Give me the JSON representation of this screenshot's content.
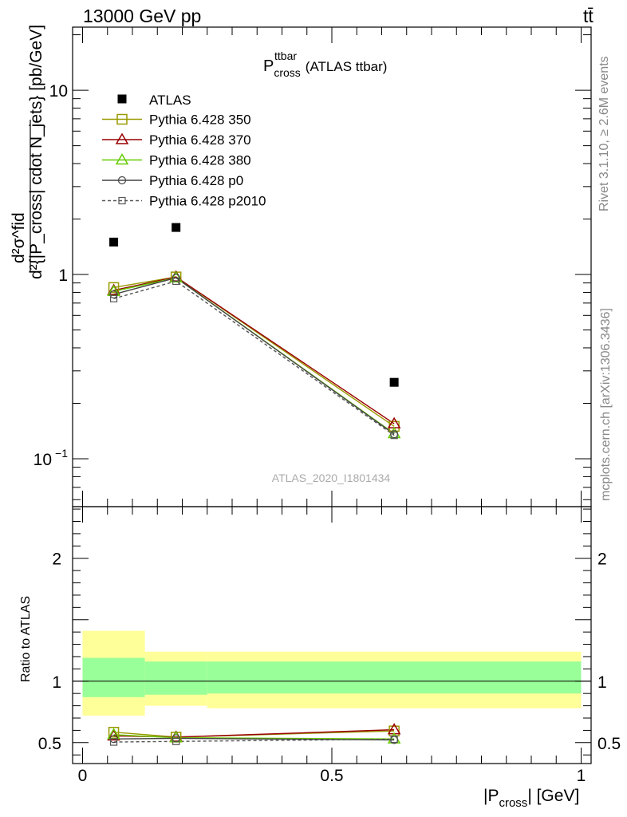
{
  "header": {
    "left": "13000 GeV pp",
    "right": "tt̄"
  },
  "side_text": {
    "rivet": "Rivet 3.1.10, ≥ 2.6M events",
    "mcplots": "mcplots.cern.ch [arXiv:1306.3436]"
  },
  "chart_data": {
    "type": "line",
    "title_main": "P",
    "title_sup": "ttbar",
    "title_sub": "cross",
    "title_suffix": "(ATLAS ttbar)",
    "watermark": "ATLAS_2020_I1801434",
    "main_ylabel": {
      "line1": "d²σ^fid",
      "line2": "d²{|P_cross| cdot N_jets} [pb/GeV]"
    },
    "ratio_ylabel": "Ratio to ATLAS",
    "xlabel": {
      "pre": "|P",
      "sub": "cross",
      "post": "| [GeV]"
    },
    "xlim": [
      -0.02,
      1.02
    ],
    "main_ylim": [
      0.055,
      22
    ],
    "main_yscale": "log",
    "main_yticks": [
      {
        "value": 10,
        "base": "10",
        "exp": ""
      },
      {
        "value": 1,
        "base": "1",
        "exp": ""
      },
      {
        "value": 0.1,
        "base": "10",
        "exp": "−1"
      }
    ],
    "ratio_ylim": [
      0.33,
      2.42
    ],
    "ratio_yticks": [
      {
        "value": 2,
        "label": "2"
      },
      {
        "value": 1,
        "label": "1"
      },
      {
        "value": 0.5,
        "label": "0.5"
      }
    ],
    "xticks": [
      {
        "value": 0,
        "label": "0"
      },
      {
        "value": 0.5,
        "label": "0.5"
      },
      {
        "value": 1,
        "label": "1"
      }
    ],
    "bands": [
      {
        "x0": 0.0,
        "x1": 0.125,
        "inner": [
          0.87,
          1.19
        ],
        "outer": [
          0.72,
          1.41
        ]
      },
      {
        "x0": 0.125,
        "x1": 0.25,
        "inner": [
          0.89,
          1.16
        ],
        "outer": [
          0.8,
          1.24
        ]
      },
      {
        "x0": 0.25,
        "x1": 1.0,
        "inner": [
          0.9,
          1.16
        ],
        "outer": [
          0.78,
          1.24
        ]
      }
    ],
    "data": {
      "name": "ATLAS",
      "x": [
        0.0625,
        0.1875,
        0.625
      ],
      "y": [
        1.5,
        1.8,
        0.26
      ]
    },
    "series": [
      {
        "name": "Pythia 6.428 350",
        "color": "#999900",
        "marker": "square-open",
        "dash": "none",
        "x": [
          0.0625,
          0.1875,
          0.625
        ],
        "y": [
          0.85,
          0.97,
          0.15
        ],
        "ratio": [
          0.585,
          0.545,
          0.595
        ]
      },
      {
        "name": "Pythia 6.428 370",
        "color": "#990000",
        "marker": "triangle-open",
        "dash": "none",
        "x": [
          0.0625,
          0.1875,
          0.625
        ],
        "y": [
          0.82,
          0.97,
          0.155
        ],
        "ratio": [
          0.555,
          0.545,
          0.605
        ]
      },
      {
        "name": "Pythia 6.428 380",
        "color": "#66cc00",
        "marker": "triangle-open",
        "dash": "none",
        "x": [
          0.0625,
          0.1875,
          0.625
        ],
        "y": [
          0.81,
          0.96,
          0.137
        ],
        "ratio": [
          0.565,
          0.54,
          0.53
        ]
      },
      {
        "name": "Pythia 6.428 p0",
        "color": "#444444",
        "marker": "circle-open",
        "dash": "none",
        "x": [
          0.0625,
          0.1875,
          0.625
        ],
        "y": [
          0.78,
          0.96,
          0.136
        ],
        "ratio": [
          0.53,
          0.535,
          0.522
        ]
      },
      {
        "name": "Pythia 6.428 p2010",
        "color": "#555555",
        "marker": "square-open-small",
        "dash": "4,3",
        "x": [
          0.0625,
          0.1875,
          0.625
        ],
        "y": [
          0.74,
          0.92,
          0.134
        ],
        "ratio": [
          0.505,
          0.51,
          0.528
        ]
      }
    ],
    "colors": {
      "band_inner": "#99ff99",
      "band_outer": "#ffff99",
      "data": "#000000"
    },
    "legend_position": "top-left"
  }
}
